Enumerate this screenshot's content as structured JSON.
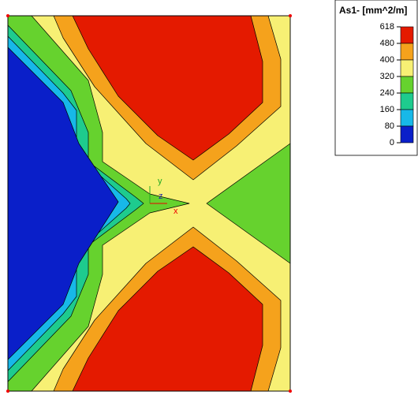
{
  "legend": {
    "title": "As1- [mm^2/m]",
    "ticks": [
      618,
      480,
      400,
      320,
      240,
      160,
      80,
      0
    ],
    "colors": [
      "#e41a00",
      "#f5a21c",
      "#f7f074",
      "#66d22e",
      "#1ecb8e",
      "#17b8e8",
      "#0a1fc9"
    ]
  },
  "axes": {
    "x": "x",
    "y": "y",
    "z": "z"
  }
}
